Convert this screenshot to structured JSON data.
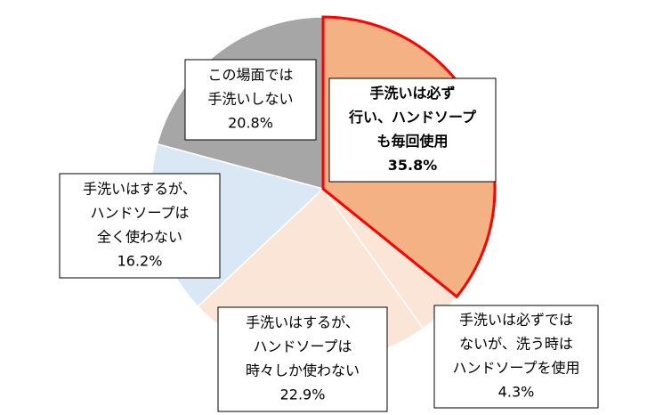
{
  "chart_data": {
    "type": "pie",
    "labels": [
      [
        "手洗いは必ず",
        "行い、ハンドソープ",
        "も毎回使用"
      ],
      [
        "手洗いは必ずでは",
        "ないが、洗う時は",
        "ハンドソープを使用"
      ],
      [
        "手洗いはするが、",
        "ハンドソープは",
        "時々しか使わない"
      ],
      [
        "手洗いはするが、",
        "ハンドソープは",
        "全く使わない"
      ],
      [
        "この場面では",
        "手洗いしない"
      ]
    ],
    "values": [
      35.8,
      4.3,
      22.9,
      16.2,
      20.8
    ],
    "value_labels": [
      "35.8%",
      "4.3%",
      "22.9%",
      "16.2%",
      "20.8%"
    ],
    "colors": [
      "#f4b183",
      "#fbe5d6",
      "#fbe5d6",
      "#dae8f5",
      "#a6a6a6"
    ],
    "highlight_color": "#ff0000"
  }
}
